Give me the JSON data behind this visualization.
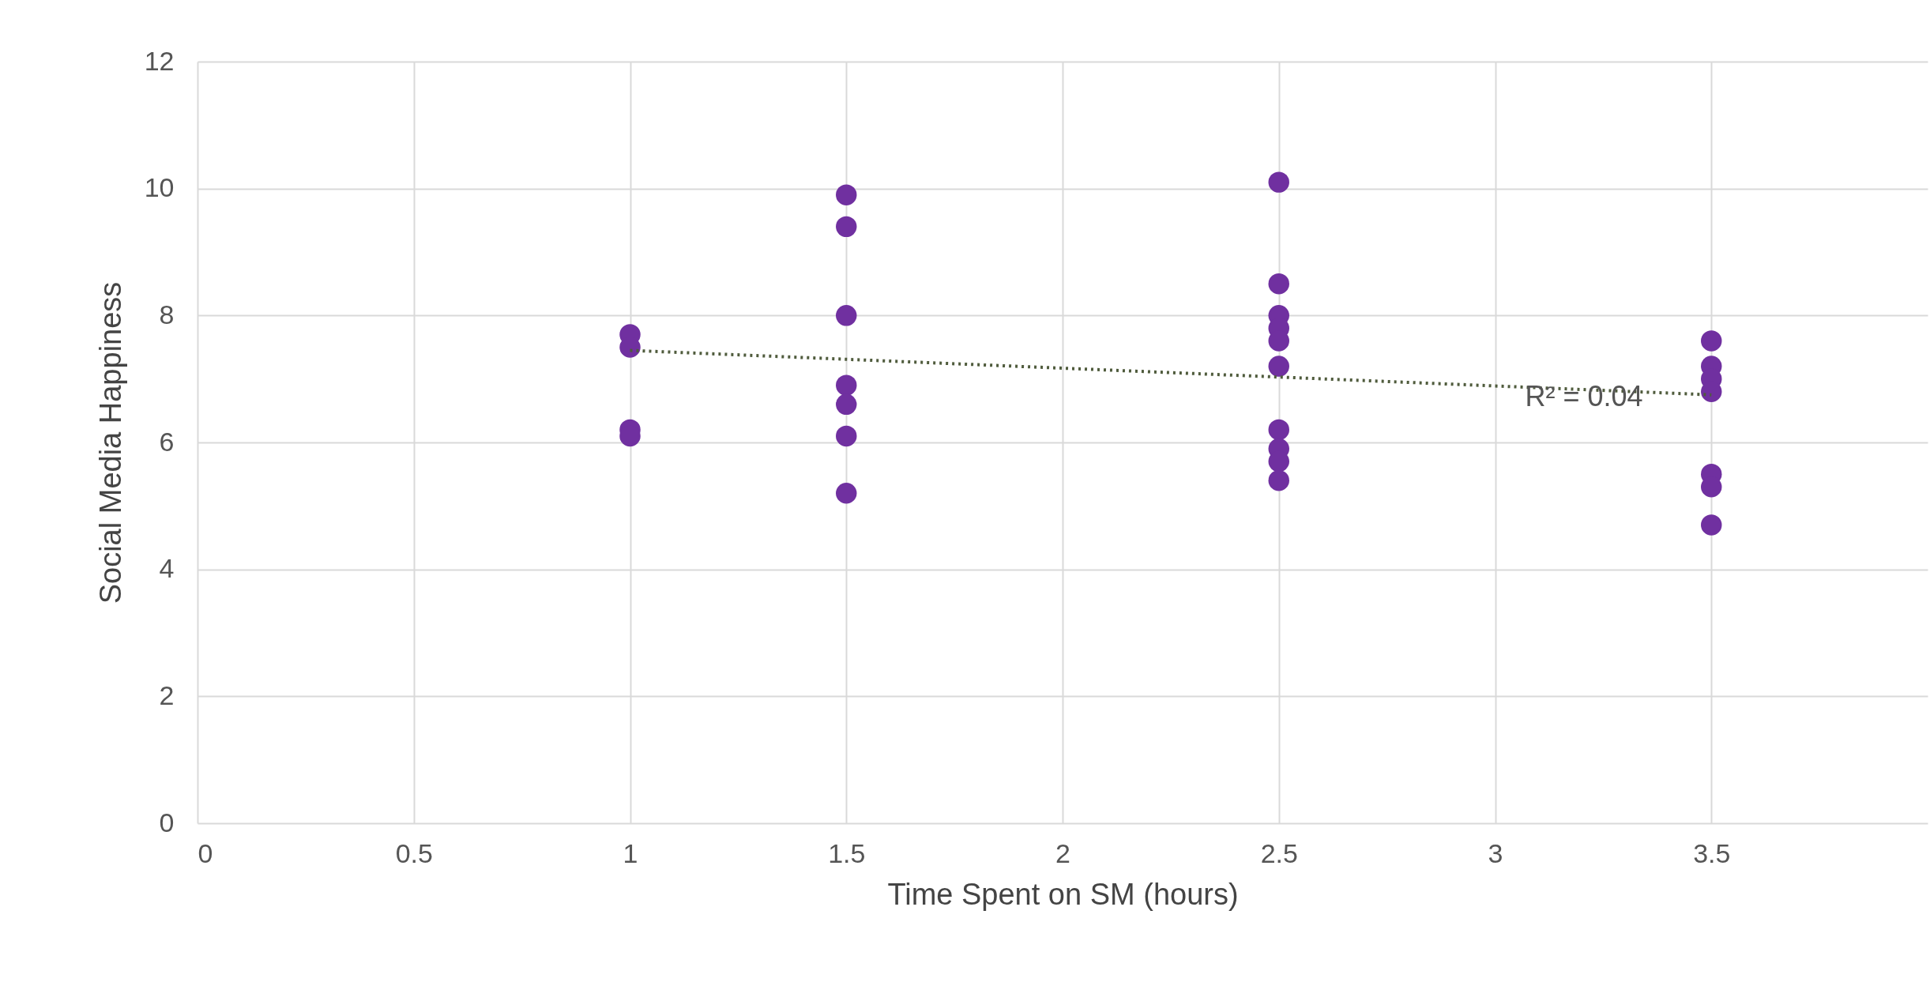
{
  "chart_data": {
    "type": "scatter",
    "xlabel": "Time Spent on SM (hours)",
    "ylabel": "Social Media Happiness",
    "xlim": [
      0,
      4
    ],
    "xticks": [
      0,
      0.5,
      1,
      1.5,
      2,
      2.5,
      3,
      3.5
    ],
    "ylim": [
      0,
      12
    ],
    "yticks": [
      0,
      2,
      4,
      6,
      8,
      10,
      12
    ],
    "grid": true,
    "marker": "circle",
    "series": [
      {
        "type": "scatter",
        "color": "#7030a0",
        "x": [
          1,
          1,
          1,
          1,
          1.5,
          1.5,
          1.5,
          1.5,
          1.5,
          1.5,
          1.5,
          2.5,
          2.5,
          2.5,
          2.5,
          2.5,
          2.5,
          2.5,
          2.5,
          2.5,
          2.5,
          3.5,
          3.5,
          3.5,
          3.5,
          3.5,
          3.5,
          3.5
        ],
        "values": [
          7.7,
          7.5,
          6.2,
          6.1,
          9.9,
          9.4,
          8.0,
          6.9,
          6.6,
          6.1,
          5.2,
          10.1,
          8.5,
          8.0,
          7.8,
          7.6,
          7.2,
          6.2,
          5.9,
          5.7,
          5.4,
          7.6,
          7.2,
          7.0,
          6.8,
          5.5,
          5.3,
          4.7
        ]
      },
      {
        "type": "line",
        "color": "#4f5b3c",
        "line_style": "dotted",
        "marker": "none",
        "x": [
          1,
          3.5
        ],
        "values": [
          7.45,
          6.75
        ]
      }
    ],
    "annotations": [
      "R² = 0.04"
    ]
  }
}
